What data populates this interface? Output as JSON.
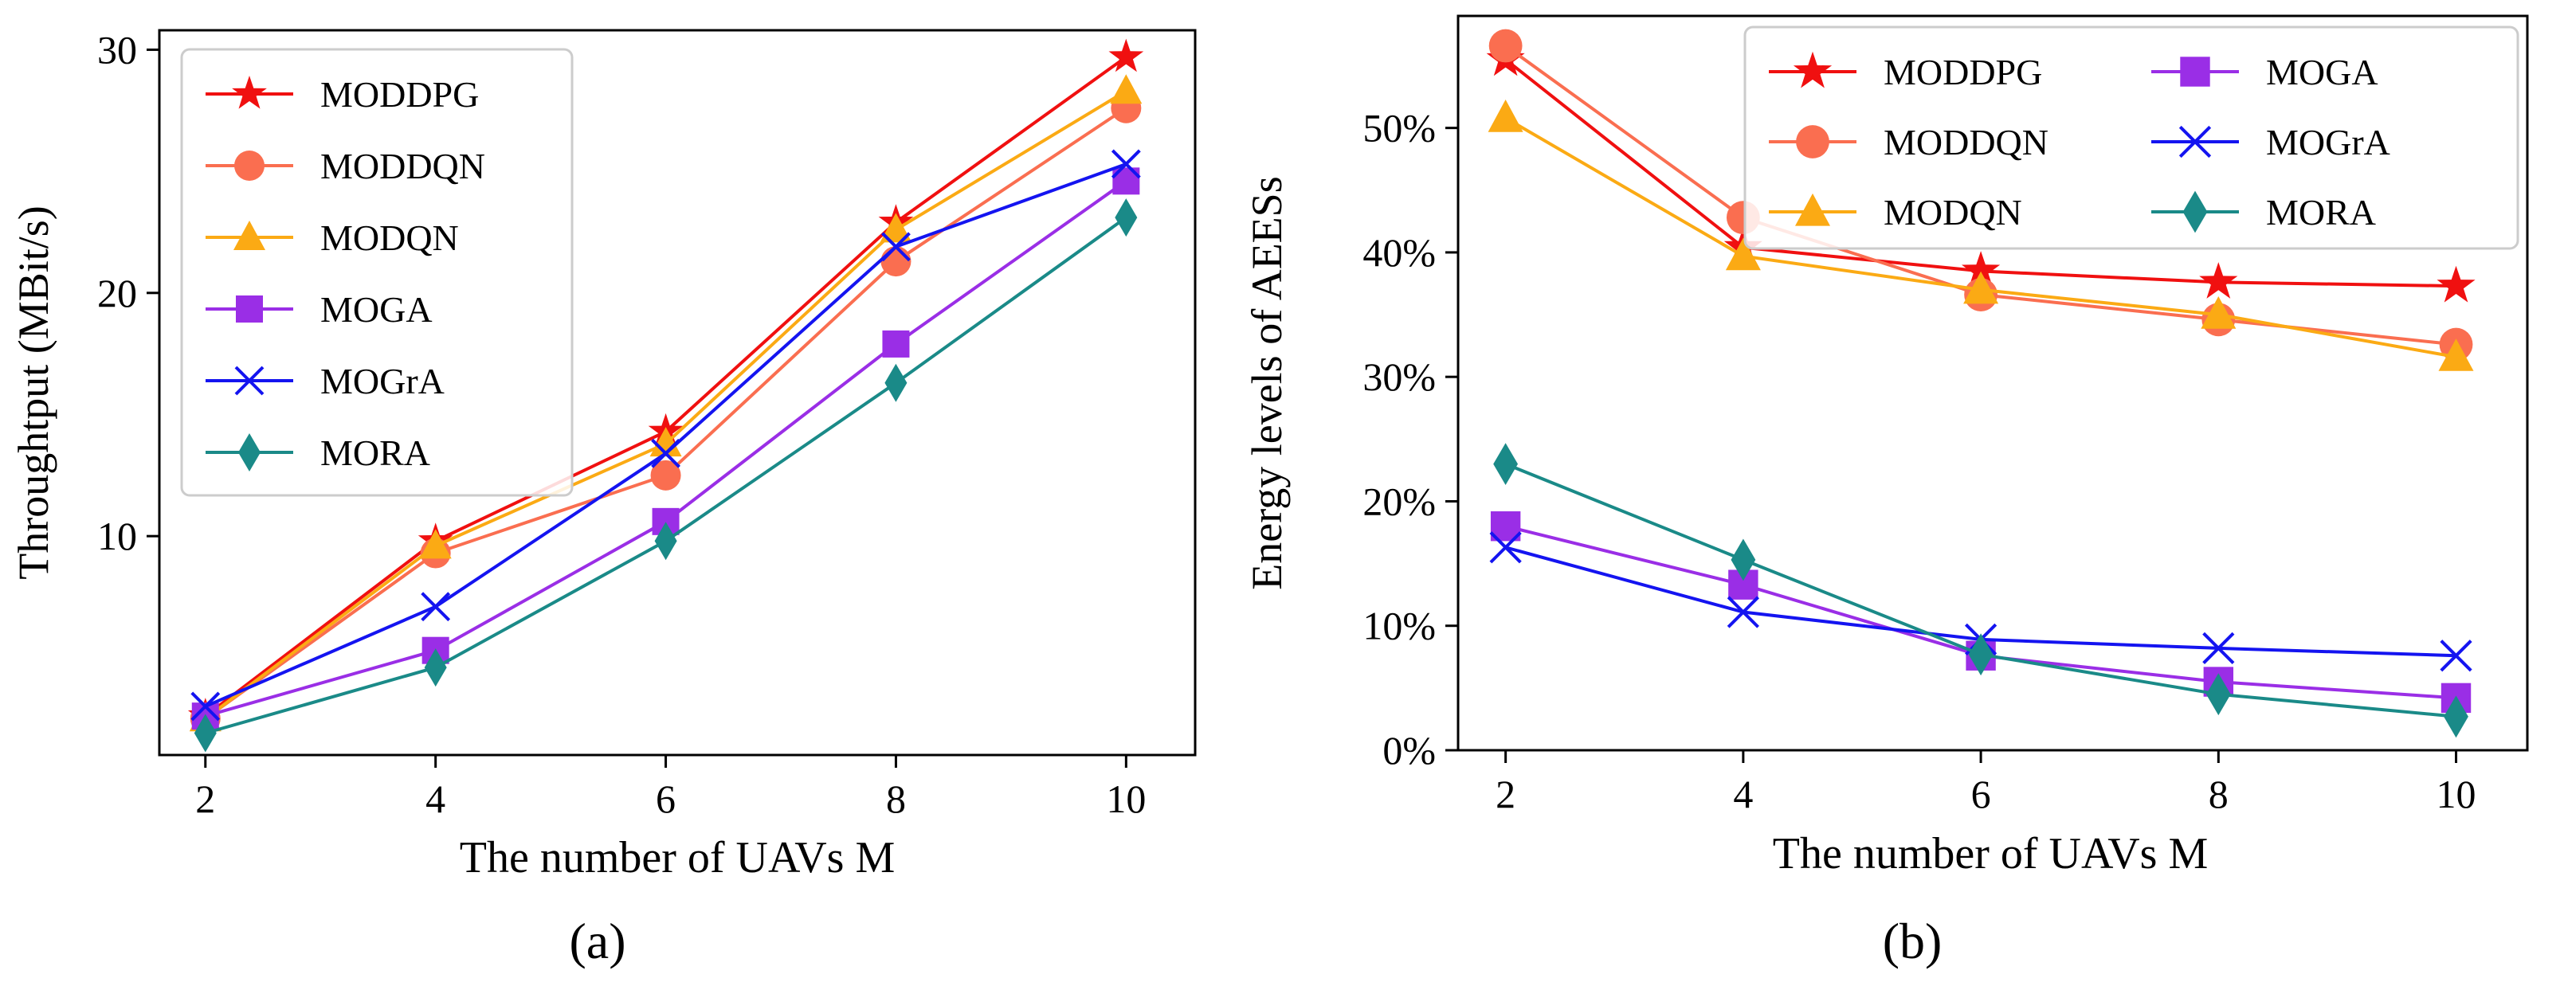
{
  "colors": {
    "MODDPG": "#f01010",
    "MODDQN": "#fa6e50",
    "MODQN": "#fbaa14",
    "MOGA": "#9a2ee6",
    "MOGrA": "#1414f0",
    "MORA": "#1a8a88"
  },
  "chart_data": [
    {
      "type": "line",
      "panel_label": "(a)",
      "ylabel": "Throughtput (MBit/s)",
      "xlabel": "The number of UAVs M",
      "x": [
        2,
        4,
        6,
        8,
        10
      ],
      "xlim": [
        1.6,
        10.6
      ],
      "ylim": [
        1.0,
        30.8
      ],
      "xticks": [
        2,
        4,
        6,
        8,
        10
      ],
      "yticks": [
        10,
        20,
        30
      ],
      "legend": "upper-left",
      "legend_columns": 1,
      "series": [
        {
          "name": "MODDPG",
          "marker": "star",
          "values": [
            2.6,
            9.8,
            14.3,
            22.9,
            29.7
          ]
        },
        {
          "name": "MODDQN",
          "marker": "circle",
          "values": [
            2.5,
            9.3,
            12.5,
            21.3,
            27.6
          ]
        },
        {
          "name": "MODQN",
          "marker": "triangle",
          "values": [
            2.5,
            9.6,
            13.8,
            22.6,
            28.3
          ]
        },
        {
          "name": "MOGA",
          "marker": "square",
          "values": [
            2.6,
            5.3,
            10.6,
            17.9,
            24.6
          ]
        },
        {
          "name": "MOGrA",
          "marker": "x",
          "values": [
            3.0,
            7.1,
            13.4,
            21.9,
            25.3
          ]
        },
        {
          "name": "MORA",
          "marker": "diamond",
          "values": [
            1.9,
            4.6,
            9.8,
            16.3,
            23.1
          ]
        }
      ]
    },
    {
      "type": "line",
      "panel_label": "(b)",
      "ylabel": "Energy levels of AEESs",
      "xlabel": "The number of UAVs M",
      "x": [
        2,
        4,
        6,
        8,
        10
      ],
      "xlim": [
        1.6,
        10.6
      ],
      "ylim": [
        0,
        59
      ],
      "xticks": [
        2,
        4,
        6,
        8,
        10
      ],
      "yticks": [
        0,
        10,
        20,
        30,
        40,
        50
      ],
      "ytick_labels": [
        "0%",
        "10%",
        "20%",
        "30%",
        "40%",
        "50%"
      ],
      "legend": "upper-right",
      "legend_columns": 2,
      "series": [
        {
          "name": "MODDPG",
          "marker": "star",
          "values": [
            55.5,
            40.4,
            38.5,
            37.6,
            37.3
          ]
        },
        {
          "name": "MODDQN",
          "marker": "circle",
          "values": [
            56.6,
            42.8,
            36.6,
            34.6,
            32.6
          ]
        },
        {
          "name": "MODQN",
          "marker": "triangle",
          "values": [
            50.8,
            39.7,
            37.0,
            35.0,
            31.6
          ]
        },
        {
          "name": "MOGA",
          "marker": "square",
          "values": [
            18.0,
            13.3,
            7.6,
            5.5,
            4.2
          ]
        },
        {
          "name": "MOGrA",
          "marker": "x",
          "values": [
            16.3,
            11.1,
            8.9,
            8.2,
            7.6
          ]
        },
        {
          "name": "MORA",
          "marker": "diamond",
          "values": [
            23.0,
            15.3,
            7.7,
            4.5,
            2.7
          ]
        }
      ]
    }
  ]
}
